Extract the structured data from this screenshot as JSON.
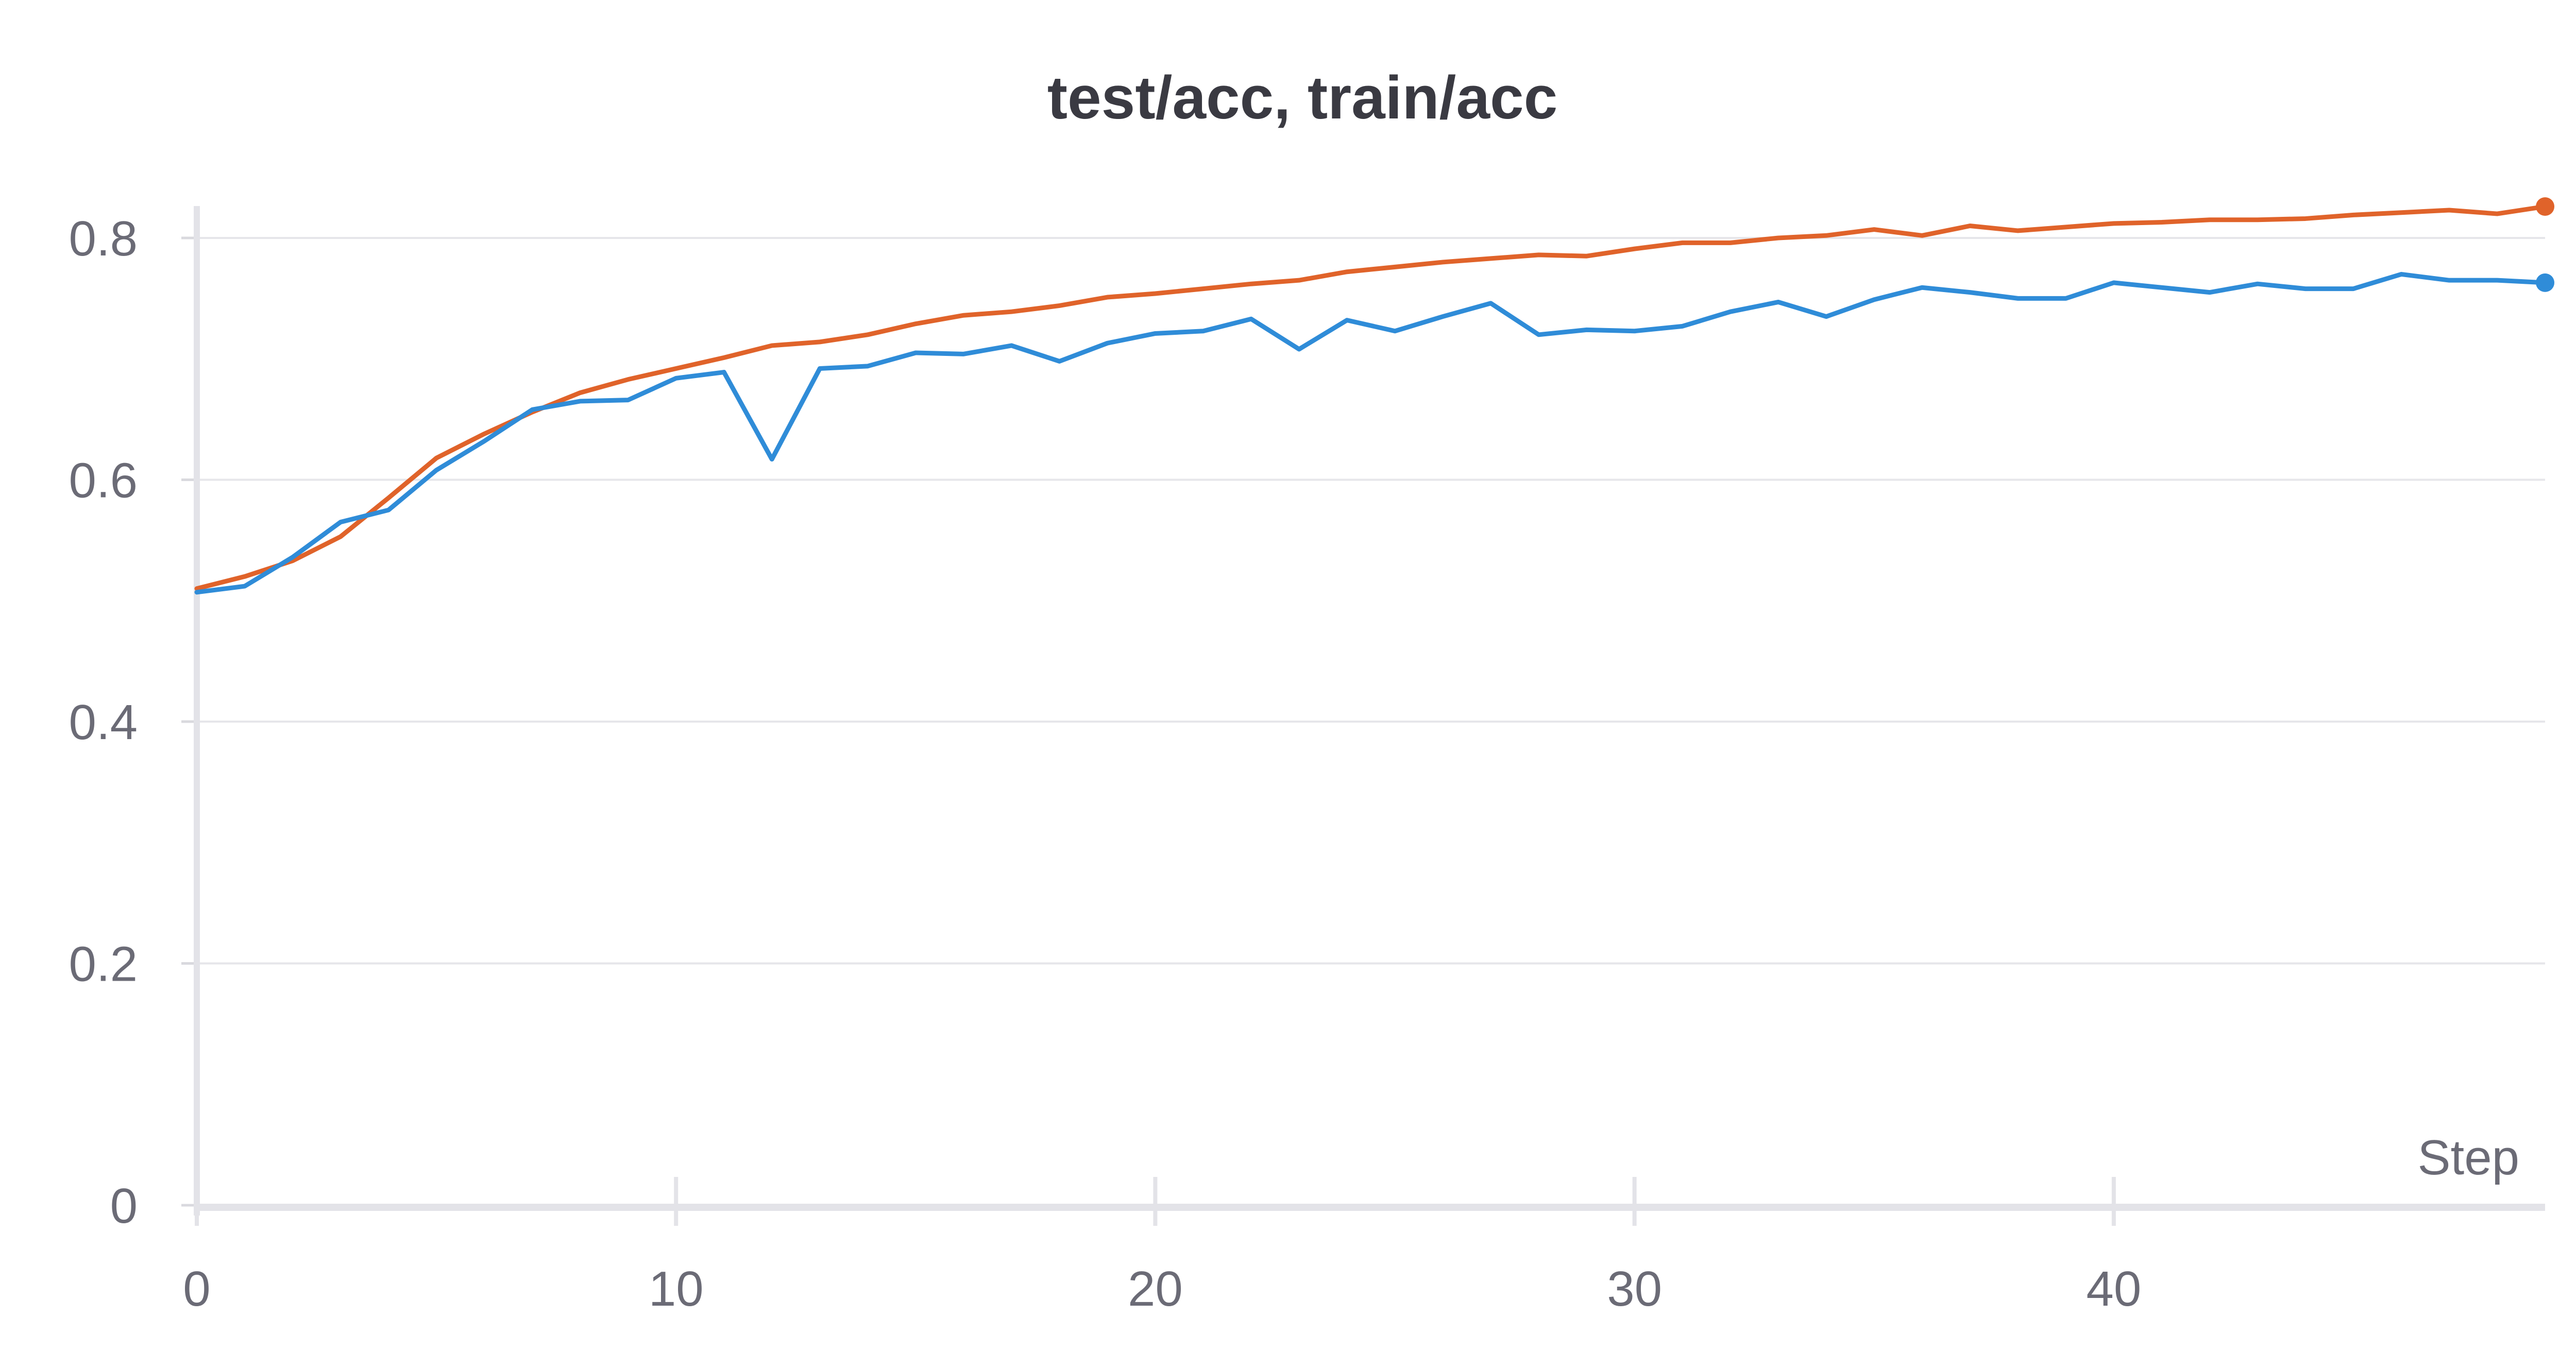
{
  "chart_data": {
    "type": "line",
    "title": "test/acc, train/acc",
    "xlabel": "Step",
    "ylabel": "",
    "xlim": [
      0,
      49
    ],
    "ylim": [
      0,
      0.8
    ],
    "x_ticks": [
      0,
      10,
      20,
      30,
      40
    ],
    "y_ticks": [
      0,
      0.2,
      0.4,
      0.6,
      0.8
    ],
    "x_tick_labels": [
      "0",
      "10",
      "20",
      "30",
      "40"
    ],
    "y_tick_labels": [
      "0",
      "0.2",
      "0.4",
      "0.6",
      "0.8"
    ],
    "grid": "horizontal",
    "legend": "none",
    "x": [
      0,
      1,
      2,
      3,
      4,
      5,
      6,
      7,
      8,
      9,
      10,
      11,
      12,
      13,
      14,
      15,
      16,
      17,
      18,
      19,
      20,
      21,
      22,
      23,
      24,
      25,
      26,
      27,
      28,
      29,
      30,
      31,
      32,
      33,
      34,
      35,
      36,
      37,
      38,
      39,
      40,
      41,
      42,
      43,
      44,
      45,
      46,
      47,
      48,
      49
    ],
    "series": [
      {
        "color": "#E0632A",
        "values": [
          0.51,
          0.52,
          0.533,
          0.553,
          0.585,
          0.618,
          0.638,
          0.656,
          0.672,
          0.683,
          0.692,
          0.701,
          0.711,
          0.714,
          0.72,
          0.729,
          0.736,
          0.739,
          0.744,
          0.751,
          0.754,
          0.758,
          0.762,
          0.765,
          0.772,
          0.776,
          0.78,
          0.783,
          0.786,
          0.785,
          0.791,
          0.796,
          0.796,
          0.8,
          0.802,
          0.807,
          0.802,
          0.81,
          0.806,
          0.809,
          0.812,
          0.813,
          0.815,
          0.815,
          0.816,
          0.819,
          0.821,
          0.823,
          0.82,
          0.826
        ]
      },
      {
        "color": "#2F8CD8",
        "values": [
          0.507,
          0.512,
          0.536,
          0.565,
          0.575,
          0.608,
          0.632,
          0.658,
          0.665,
          0.666,
          0.684,
          0.689,
          0.617,
          0.692,
          0.694,
          0.705,
          0.704,
          0.711,
          0.698,
          0.713,
          0.721,
          0.723,
          0.733,
          0.708,
          0.732,
          0.723,
          0.735,
          0.746,
          0.72,
          0.724,
          0.723,
          0.727,
          0.739,
          0.747,
          0.735,
          0.749,
          0.759,
          0.755,
          0.75,
          0.75,
          0.763,
          0.759,
          0.755,
          0.762,
          0.758,
          0.758,
          0.77,
          0.765,
          0.765,
          0.763
        ]
      }
    ]
  }
}
